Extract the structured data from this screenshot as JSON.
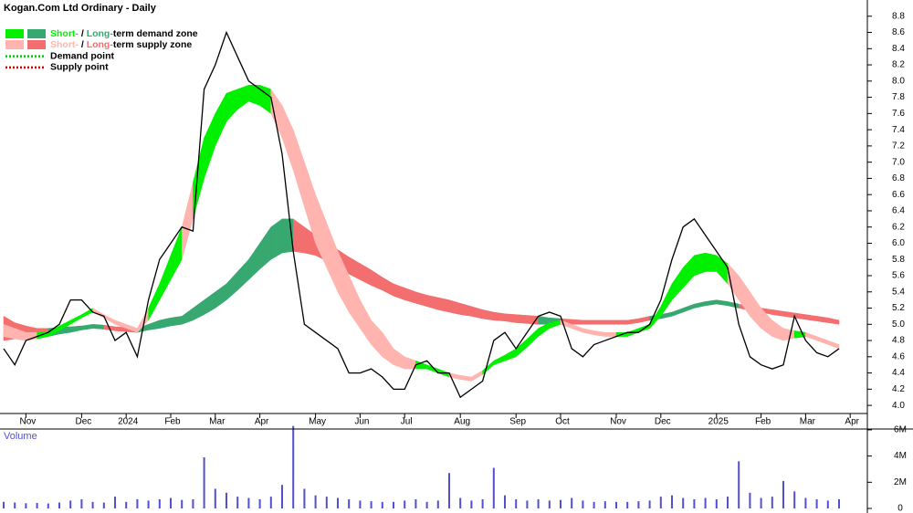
{
  "chart_data": {
    "type": "price-zones",
    "title": "Kogan.Com Ltd Ordinary - Daily",
    "legend": [
      {
        "short": "Short-",
        "sep": " / ",
        "long": "Long-",
        "rest": "term demand zone",
        "short_color": "#00f000",
        "long_color": "#37a86f"
      },
      {
        "short": "Short-",
        "sep": " / ",
        "long": "Long-",
        "rest": "term supply zone",
        "short_color": "#ffb4b0",
        "long_color": "#f36f6f"
      },
      {
        "text": "Demand point",
        "color": "#00cc00"
      },
      {
        "text": "Supply point",
        "color": "#dd0000"
      }
    ],
    "categories": [
      null,
      null,
      "Nov",
      null,
      null,
      null,
      null,
      "Dec",
      null,
      null,
      null,
      "2024",
      null,
      null,
      null,
      "Feb",
      null,
      null,
      null,
      "Mar",
      null,
      null,
      null,
      "Apr",
      null,
      null,
      null,
      null,
      "May",
      null,
      null,
      null,
      "Jun",
      null,
      null,
      null,
      "Jul",
      null,
      null,
      null,
      null,
      "Aug",
      null,
      null,
      null,
      null,
      "Sep",
      null,
      null,
      null,
      "Oct",
      null,
      null,
      null,
      null,
      "Nov",
      null,
      null,
      null,
      "Dec",
      null,
      null,
      null,
      null,
      "2025",
      null,
      null,
      null,
      "Feb",
      null,
      null,
      null,
      "Mar",
      null,
      null,
      null,
      "Apr"
    ],
    "price": {
      "color": "#000000",
      "values": [
        4.7,
        4.5,
        4.8,
        4.85,
        4.9,
        5.0,
        5.3,
        5.3,
        5.15,
        5.1,
        4.8,
        4.9,
        4.6,
        5.3,
        5.8,
        6.0,
        6.2,
        6.15,
        7.9,
        8.2,
        8.6,
        8.3,
        8.0,
        7.9,
        7.8,
        7.1,
        5.9,
        5.0,
        4.9,
        4.8,
        4.7,
        4.4,
        4.4,
        4.45,
        4.35,
        4.2,
        4.2,
        4.5,
        4.55,
        4.4,
        4.4,
        4.1,
        4.2,
        4.3,
        4.8,
        4.9,
        4.7,
        4.9,
        5.1,
        5.15,
        5.1,
        4.7,
        4.6,
        4.75,
        4.8,
        4.85,
        4.9,
        4.9,
        5.0,
        5.3,
        5.8,
        6.2,
        6.3,
        6.1,
        5.9,
        5.7,
        5.0,
        4.6,
        4.5,
        4.45,
        4.5,
        5.1,
        4.8,
        4.65,
        4.6,
        4.7,
        null
      ]
    },
    "short_term_zone": {
      "lower": [
        4.85,
        4.82,
        4.8,
        4.82,
        4.85,
        4.92,
        5.0,
        5.08,
        5.15,
        5.08,
        5.0,
        4.95,
        4.9,
        5.05,
        5.3,
        5.55,
        5.8,
        6.3,
        6.8,
        7.2,
        7.5,
        7.65,
        7.75,
        7.7,
        7.6,
        7.3,
        6.9,
        6.45,
        6.0,
        5.7,
        5.4,
        5.15,
        4.95,
        4.75,
        4.6,
        4.5,
        4.45,
        4.45,
        4.45,
        4.4,
        4.35,
        4.32,
        4.3,
        4.38,
        4.5,
        4.55,
        4.6,
        4.72,
        4.85,
        4.95,
        5.0,
        4.95,
        4.9,
        4.87,
        4.85,
        4.85,
        4.85,
        4.9,
        4.95,
        5.1,
        5.3,
        5.45,
        5.6,
        5.65,
        5.65,
        5.5,
        5.3,
        5.1,
        4.95,
        4.85,
        4.8,
        4.83,
        4.85,
        4.8,
        4.75,
        4.7,
        null
      ],
      "upper": [
        5.0,
        4.95,
        4.9,
        4.9,
        4.9,
        4.98,
        5.05,
        5.12,
        5.2,
        5.12,
        5.05,
        5.0,
        4.95,
        5.2,
        5.5,
        5.85,
        6.2,
        6.75,
        7.3,
        7.6,
        7.85,
        7.9,
        7.95,
        7.95,
        7.9,
        7.7,
        7.4,
        7.0,
        6.6,
        6.25,
        5.9,
        5.6,
        5.3,
        5.05,
        4.9,
        4.7,
        4.6,
        4.55,
        4.5,
        4.45,
        4.4,
        4.37,
        4.35,
        4.43,
        4.55,
        4.62,
        4.7,
        4.82,
        4.95,
        5.02,
        5.05,
        5.0,
        4.95,
        4.92,
        4.9,
        4.9,
        4.9,
        4.95,
        5.0,
        5.22,
        5.5,
        5.7,
        5.85,
        5.88,
        5.85,
        5.75,
        5.6,
        5.4,
        5.2,
        5.05,
        4.95,
        4.92,
        4.9,
        4.85,
        4.8,
        4.75,
        null
      ]
    },
    "long_term_zone": {
      "lower": [
        4.8,
        4.82,
        4.84,
        4.85,
        4.85,
        4.88,
        4.9,
        4.93,
        4.95,
        4.94,
        4.92,
        4.91,
        4.9,
        4.93,
        4.95,
        4.98,
        5.0,
        5.05,
        5.12,
        5.2,
        5.3,
        5.42,
        5.55,
        5.68,
        5.8,
        5.88,
        5.9,
        5.88,
        5.85,
        5.78,
        5.7,
        5.62,
        5.55,
        5.48,
        5.42,
        5.35,
        5.3,
        5.26,
        5.22,
        5.18,
        5.15,
        5.12,
        5.1,
        5.07,
        5.05,
        5.04,
        5.02,
        5.01,
        5.0,
        5.0,
        5.0,
        5.0,
        5.0,
        5.0,
        5.0,
        5.0,
        5.0,
        5.02,
        5.05,
        5.07,
        5.1,
        5.15,
        5.2,
        5.23,
        5.25,
        5.23,
        5.2,
        5.17,
        5.15,
        5.12,
        5.1,
        5.08,
        5.06,
        5.04,
        5.02,
        5.0,
        null
      ],
      "upper": [
        5.1,
        5.02,
        4.98,
        4.95,
        4.95,
        4.96,
        4.97,
        4.98,
        5.0,
        4.99,
        4.97,
        4.96,
        4.95,
        5.0,
        5.05,
        5.08,
        5.1,
        5.2,
        5.3,
        5.4,
        5.5,
        5.65,
        5.8,
        6.0,
        6.2,
        6.3,
        6.3,
        6.2,
        6.1,
        6.0,
        5.92,
        5.83,
        5.75,
        5.67,
        5.58,
        5.5,
        5.45,
        5.4,
        5.36,
        5.33,
        5.3,
        5.26,
        5.22,
        5.18,
        5.15,
        5.13,
        5.12,
        5.11,
        5.1,
        5.08,
        5.07,
        5.06,
        5.05,
        5.05,
        5.05,
        5.05,
        5.05,
        5.07,
        5.1,
        5.12,
        5.15,
        5.2,
        5.25,
        5.28,
        5.3,
        5.28,
        5.25,
        5.22,
        5.2,
        5.18,
        5.16,
        5.14,
        5.12,
        5.1,
        5.08,
        5.05,
        null
      ]
    },
    "ylim": [
      3.9,
      9.0
    ],
    "yticks": [
      {
        "value": 4.0,
        "label": "4.0"
      },
      4.2,
      4.4,
      4.6,
      4.8,
      {
        "value": 5.0,
        "label": "5.0"
      },
      5.2,
      5.4,
      5.6,
      5.8,
      {
        "value": 6.0,
        "label": "6.0"
      },
      6.2,
      6.4,
      6.6,
      6.8,
      {
        "value": 7.0,
        "label": "7.0"
      },
      7.2,
      7.4,
      7.6,
      7.8,
      {
        "value": 8.0,
        "label": "8.0"
      },
      8.2,
      8.4,
      8.6,
      8.8
    ],
    "volume": {
      "label": "Volume",
      "color": "#5050d0",
      "values": [
        500000,
        450000,
        400000,
        420000,
        380000,
        450000,
        600000,
        700000,
        500000,
        450000,
        900000,
        500000,
        700000,
        600000,
        700000,
        800000,
        650000,
        700000,
        3900000,
        1500000,
        1200000,
        900000,
        800000,
        700000,
        900000,
        1800000,
        6300000,
        1500000,
        1000000,
        900000,
        800000,
        700000,
        600000,
        550000,
        500000,
        500000,
        600000,
        700000,
        500000,
        600000,
        2700000,
        800000,
        600000,
        700000,
        3100000,
        1000000,
        700000,
        600000,
        700000,
        600000,
        650000,
        800000,
        600000,
        500000,
        550000,
        500000,
        500000,
        550000,
        600000,
        900000,
        1000000,
        800000,
        700000,
        800000,
        700000,
        900000,
        3600000,
        1200000,
        800000,
        900000,
        2100000,
        1300000,
        800000,
        700000,
        600000,
        700000,
        null
      ],
      "ylim": [
        0,
        6900000
      ],
      "yticks": [
        0,
        {
          "value": 2000000,
          "label": "2M"
        },
        {
          "value": 4000000,
          "label": "4M"
        },
        {
          "value": 6000000,
          "label": "6M"
        }
      ]
    }
  }
}
